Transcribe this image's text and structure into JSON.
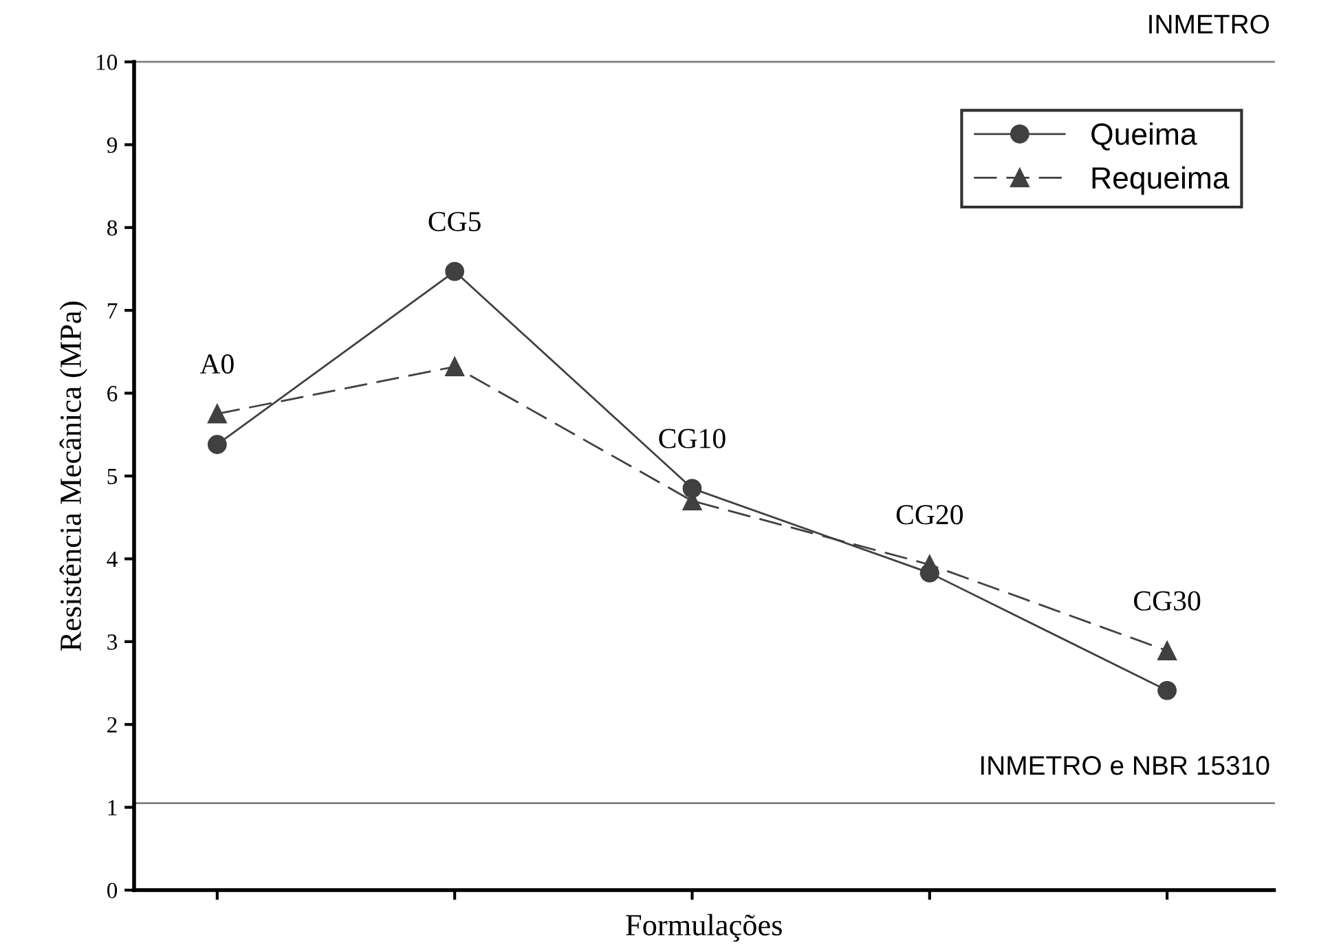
{
  "chart_data": {
    "type": "line",
    "xlabel": "Formulações",
    "ylabel": "Resistência Mecânica (MPa)",
    "categories": [
      "A0",
      "CG5",
      "CG10",
      "CG20",
      "CG30"
    ],
    "series": [
      {
        "name": "Queima",
        "color": "#404040",
        "marker": "circle",
        "line_style": "solid",
        "values": [
          5.38,
          7.47,
          4.85,
          3.83,
          2.41
        ]
      },
      {
        "name": "Requeima",
        "color": "#404040",
        "marker": "triangle",
        "line_style": "dashed",
        "values": [
          5.75,
          6.32,
          4.7,
          3.93,
          2.89
        ]
      }
    ],
    "ylim": [
      0,
      10
    ],
    "yticks": [
      0,
      1,
      2,
      3,
      4,
      5,
      6,
      7,
      8,
      9,
      10
    ],
    "ref_lines": [
      {
        "axis": "y",
        "value": 10,
        "label": "INMETRO",
        "color": "#808080"
      },
      {
        "axis": "y",
        "value": 1.05,
        "label": "INMETRO e NBR 15310",
        "color": "#808080"
      }
    ],
    "legend": "top right",
    "grid": false
  }
}
